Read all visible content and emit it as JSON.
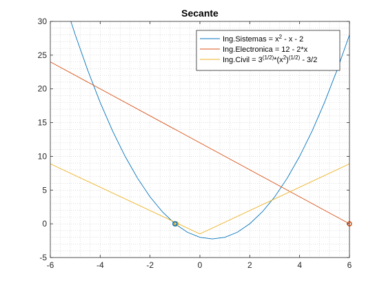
{
  "chart_data": {
    "type": "line",
    "title": "Secante",
    "xlabel": "",
    "ylabel": "",
    "xlim": [
      -6,
      6
    ],
    "ylim": [
      -5,
      30
    ],
    "x_ticks": [
      -6,
      -4,
      -2,
      0,
      2,
      4,
      6
    ],
    "y_ticks": [
      -5,
      0,
      5,
      10,
      15,
      20,
      25,
      30
    ],
    "grid": "minor-dotted",
    "legend_position": "top-right",
    "legend_labels": [
      {
        "base": "Ing.Sistemas = x",
        "sup": "2",
        "tail": " - x - 2"
      },
      {
        "base": "Ing.Electronica = 12 - 2*x"
      },
      {
        "base": "Ing.Civil = 3",
        "sup": "(1/2)",
        "mid": "*(x",
        "sup2": "2",
        "mid2": ")",
        "sup3": "(1/2)",
        "tail": " - 3/2"
      }
    ],
    "series": [
      {
        "name": "Ing.Sistemas = x^2 - x - 2",
        "color": "#0072BD",
        "x": [
          -5.4,
          -5.0,
          -4.5,
          -4.0,
          -3.5,
          -3.0,
          -2.5,
          -2.0,
          -1.5,
          -1.0,
          -0.5,
          0.0,
          0.5,
          1.0,
          1.5,
          2.0,
          2.5,
          3.0,
          3.5,
          4.0,
          4.5,
          5.0,
          5.5,
          6.0
        ],
        "y": [
          32.56,
          28.0,
          22.75,
          18.0,
          13.75,
          10.0,
          6.75,
          4.0,
          1.75,
          0.0,
          -1.25,
          -2.0,
          -2.25,
          -2.0,
          -1.25,
          0.0,
          1.75,
          4.0,
          6.75,
          10.0,
          13.75,
          18.0,
          22.75,
          28.0
        ]
      },
      {
        "name": "Ing.Electronica = 12 - 2*x",
        "color": "#D95319",
        "x": [
          -6,
          6
        ],
        "y": [
          24,
          0
        ]
      },
      {
        "name": "Ing.Civil = 3^(1/2)*(x^2)^(1/2) - 3/2",
        "color": "#EDB120",
        "x": [
          -6,
          0,
          6
        ],
        "y": [
          8.89,
          -1.5,
          8.89
        ]
      }
    ],
    "markers": [
      {
        "x": -0.95,
        "y": 0,
        "color": "#EDB120"
      },
      {
        "x": -1.0,
        "y": 0,
        "color": "#0072BD"
      },
      {
        "x": 6,
        "y": 0,
        "color": "#D95319"
      }
    ]
  }
}
